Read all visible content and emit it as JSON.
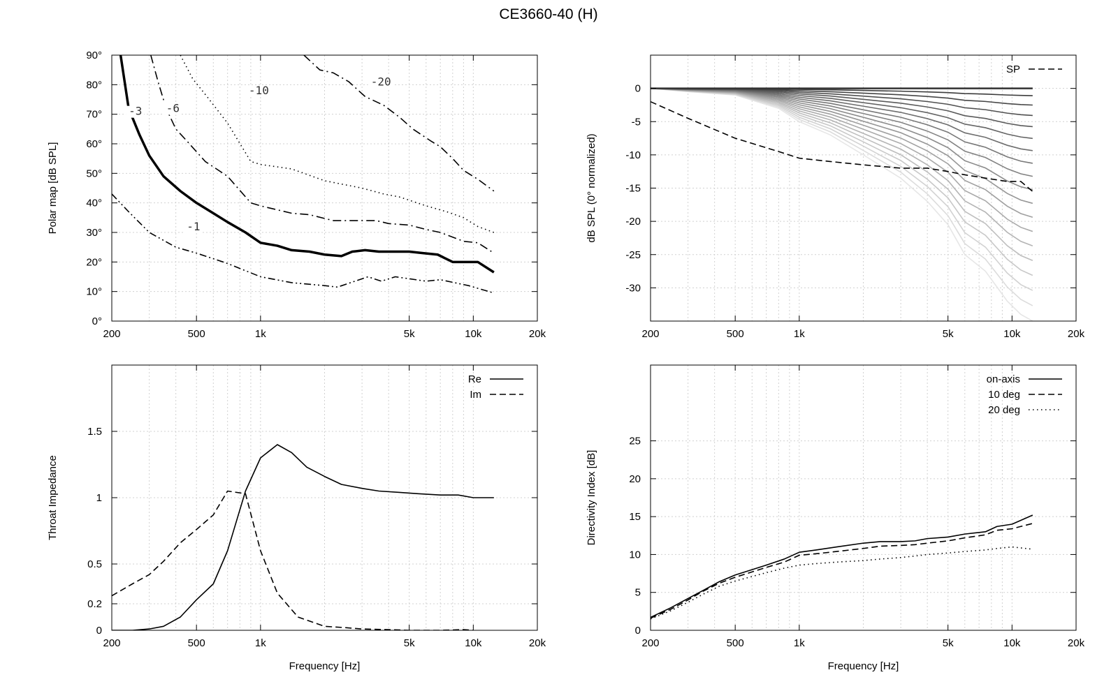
{
  "figure_title": "CE3660-40 (H)",
  "chart_data": [
    {
      "type": "line",
      "id": "polar_map",
      "title": "",
      "xlabel": "",
      "ylabel": "Polar map [dB SPL]",
      "xscale": "log",
      "xlim": [
        200,
        20000
      ],
      "ylim": [
        0,
        90
      ],
      "xticks": [
        200,
        500,
        1000,
        5000,
        10000,
        20000
      ],
      "xtick_labels": [
        "200",
        "500",
        "1k",
        "5k",
        "10k",
        "20k"
      ],
      "yticks": [
        0,
        10,
        20,
        30,
        40,
        50,
        60,
        70,
        80,
        90
      ],
      "ytick_labels": [
        "0°",
        "10°",
        "20°",
        "30°",
        "40°",
        "50°",
        "60°",
        "70°",
        "80°",
        "90°"
      ],
      "grid": true,
      "series": [
        {
          "name": "-1",
          "style": "dash-dot-dot",
          "x": [
            200,
            240,
            300,
            400,
            500,
            700,
            1000,
            1400,
            2000,
            2300,
            3200,
            3700,
            4300,
            6000,
            7000,
            9500,
            12500
          ],
          "y": [
            43,
            37,
            30,
            25,
            23,
            19.5,
            15,
            13,
            12,
            11.5,
            15,
            13.5,
            15,
            13.5,
            14,
            12,
            9.5
          ]
        },
        {
          "name": "-3",
          "style": "thick",
          "x": [
            220,
            240,
            270,
            300,
            350,
            420,
            500,
            600,
            700,
            850,
            1000,
            1200,
            1400,
            1700,
            2000,
            2400,
            2700,
            3100,
            3600,
            4200,
            5000,
            5800,
            6800,
            8000,
            9000,
            10500,
            12500
          ],
          "y": [
            90,
            72,
            63,
            56,
            49,
            44,
            40,
            36.5,
            33.5,
            30,
            26.5,
            25.5,
            24,
            23.5,
            22.5,
            22,
            23.5,
            24,
            23.5,
            23.5,
            23.5,
            23,
            22.5,
            20,
            20,
            20,
            16.5
          ]
        },
        {
          "name": "-6",
          "style": "dash-dot",
          "x": [
            305,
            330,
            360,
            400,
            450,
            550,
            700,
            900,
            1000,
            1400,
            1700,
            2200,
            3000,
            3500,
            4000,
            5000,
            6000,
            7000,
            9000,
            10500,
            12500
          ],
          "y": [
            90,
            81,
            72,
            65,
            61,
            54,
            49,
            40,
            39,
            36.5,
            36,
            34,
            34,
            34,
            33,
            32.5,
            31,
            30,
            27,
            26.5,
            23
          ]
        },
        {
          "name": "-10",
          "style": "dotted",
          "x": [
            420,
            480,
            560,
            700,
            900,
            1000,
            1400,
            2000,
            3000,
            3800,
            4500,
            6000,
            7500,
            9000,
            10500,
            12500
          ],
          "y": [
            90,
            82,
            76,
            67,
            54,
            53,
            51.5,
            47.5,
            45,
            43,
            42,
            39,
            37,
            35,
            32,
            30
          ]
        },
        {
          "name": "-20",
          "style": "dash-dot",
          "x": [
            1600,
            1900,
            2200,
            2600,
            3100,
            3800,
            4500,
            5200,
            6300,
            7000,
            8000,
            9000,
            10500,
            12500
          ],
          "y": [
            90,
            85,
            84,
            81,
            76,
            73,
            69,
            65,
            61,
            59,
            55,
            51,
            48,
            44
          ]
        }
      ],
      "annotations": [
        {
          "text": "-1",
          "x": 450,
          "y": 31
        },
        {
          "text": "-3",
          "x": 240,
          "y": 70
        },
        {
          "text": "-6",
          "x": 360,
          "y": 71
        },
        {
          "text": "-10",
          "x": 880,
          "y": 77
        },
        {
          "text": "-20",
          "x": 3300,
          "y": 80
        }
      ]
    },
    {
      "type": "line",
      "id": "normalized_spl",
      "title": "",
      "xlabel": "",
      "ylabel": "dB SPL (0° normalized)",
      "xscale": "log",
      "xlim": [
        200,
        20000
      ],
      "ylim": [
        -35,
        5
      ],
      "xticks": [
        200,
        500,
        1000,
        5000,
        10000,
        20000
      ],
      "xtick_labels": [
        "200",
        "500",
        "1k",
        "5k",
        "10k",
        "20k"
      ],
      "yticks": [
        0,
        -5,
        -10,
        -15,
        -20,
        -25,
        -30
      ],
      "ytick_labels": [
        "0",
        "-5",
        "-10",
        "-15",
        "-20",
        "-25",
        "-30"
      ],
      "grid": true,
      "legend": {
        "position": "top-right",
        "entries": [
          "SP"
        ]
      },
      "x": [
        200,
        300,
        500,
        800,
        1000,
        1400,
        2000,
        3000,
        4000,
        5000,
        6000,
        7500,
        9500,
        11000,
        12500
      ],
      "curve_depth_at_end_dB": [
        0,
        -0.5,
        -1,
        -3,
        -5,
        -7,
        -10,
        -13.5,
        -17,
        -20.5,
        -25,
        -27.5,
        -32,
        -34,
        -35
      ],
      "series": [
        {
          "name": "SP",
          "style": "dashed",
          "x": [
            200,
            300,
            500,
            800,
            1000,
            1400,
            2000,
            3000,
            4000,
            5000,
            6000,
            7500,
            9500,
            11000,
            12500
          ],
          "y": [
            -2,
            -4.5,
            -7.5,
            -9.5,
            -10.5,
            -11,
            -11.5,
            -12,
            -12,
            -12.5,
            -13,
            -13.5,
            -14,
            -14,
            -15.5
          ]
        }
      ]
    },
    {
      "type": "line",
      "id": "throat_impedance",
      "title": "",
      "xlabel": "Frequency [Hz]",
      "ylabel": "Throat Impedance",
      "xscale": "log",
      "xlim": [
        200,
        20000
      ],
      "ylim": [
        0,
        2
      ],
      "xticks": [
        200,
        500,
        1000,
        5000,
        10000,
        20000
      ],
      "xtick_labels": [
        "200",
        "500",
        "1k",
        "5k",
        "10k",
        "20k"
      ],
      "yticks": [
        0,
        0.2,
        0.5,
        1,
        1.5
      ],
      "ytick_labels": [
        "0",
        "0.2",
        "0.5",
        "1",
        "1.5"
      ],
      "grid": true,
      "legend": {
        "position": "top-right",
        "entries": [
          "Re",
          "Im"
        ]
      },
      "series": [
        {
          "name": "Re",
          "style": "solid",
          "x": [
            200,
            250,
            300,
            350,
            420,
            500,
            600,
            700,
            850,
            1000,
            1200,
            1400,
            1650,
            2000,
            2400,
            3000,
            3600,
            4500,
            5500,
            7000,
            8500,
            10000,
            12500
          ],
          "y": [
            0,
            0,
            0.01,
            0.03,
            0.1,
            0.23,
            0.35,
            0.6,
            1.05,
            1.3,
            1.4,
            1.34,
            1.23,
            1.16,
            1.1,
            1.07,
            1.05,
            1.04,
            1.03,
            1.02,
            1.02,
            1.0,
            1.0
          ]
        },
        {
          "name": "Im",
          "style": "dashed",
          "x": [
            200,
            250,
            300,
            350,
            420,
            500,
            600,
            700,
            850,
            1000,
            1200,
            1500,
            2000,
            2500,
            3000,
            4000,
            5000,
            7000,
            9000,
            10000
          ],
          "y": [
            0.26,
            0.35,
            0.42,
            0.52,
            0.66,
            0.76,
            0.87,
            1.05,
            1.03,
            0.6,
            0.28,
            0.1,
            0.03,
            0.02,
            0.01,
            0.005,
            0,
            0,
            0.005,
            0
          ]
        }
      ]
    },
    {
      "type": "line",
      "id": "directivity_index",
      "title": "",
      "xlabel": "Frequency [Hz]",
      "ylabel": "Directivity Index [dB]",
      "xscale": "log",
      "xlim": [
        200,
        20000
      ],
      "ylim": [
        0,
        35
      ],
      "xticks": [
        200,
        500,
        1000,
        5000,
        10000,
        20000
      ],
      "xtick_labels": [
        "200",
        "500",
        "1k",
        "5k",
        "10k",
        "20k"
      ],
      "yticks": [
        0,
        5,
        10,
        15,
        20,
        25
      ],
      "ytick_labels": [
        "0",
        "5",
        "10",
        "15",
        "20",
        "25"
      ],
      "grid": true,
      "legend": {
        "position": "top-right",
        "entries": [
          "on-axis",
          "10 deg",
          "20 deg"
        ]
      },
      "series": [
        {
          "name": "on-axis",
          "style": "solid",
          "x": [
            200,
            250,
            300,
            350,
            420,
            500,
            600,
            700,
            850,
            1000,
            1200,
            1500,
            2000,
            2400,
            3000,
            3500,
            4000,
            5000,
            6000,
            7500,
            8500,
            10000,
            12500
          ],
          "y": [
            1.7,
            3,
            4.2,
            5.2,
            6.4,
            7.3,
            8,
            8.6,
            9.4,
            10.3,
            10.6,
            11,
            11.5,
            11.7,
            11.7,
            11.8,
            12.1,
            12.3,
            12.7,
            13,
            13.7,
            14,
            15.2
          ]
        },
        {
          "name": "10 deg",
          "style": "dashed",
          "x": [
            200,
            250,
            300,
            350,
            420,
            500,
            600,
            700,
            850,
            1000,
            1200,
            1500,
            2000,
            2400,
            3000,
            3500,
            4000,
            5000,
            6000,
            7500,
            8500,
            10000,
            12500
          ],
          "y": [
            1.6,
            2.8,
            4,
            5.1,
            6.2,
            7,
            7.7,
            8.3,
            9,
            9.9,
            10.1,
            10.4,
            10.8,
            11.1,
            11.2,
            11.3,
            11.5,
            11.8,
            12.2,
            12.6,
            13.2,
            13.4,
            14.1
          ]
        },
        {
          "name": "20 deg",
          "style": "dotted",
          "x": [
            200,
            250,
            300,
            350,
            420,
            500,
            600,
            700,
            850,
            1000,
            1200,
            1500,
            2000,
            2400,
            3000,
            3500,
            4000,
            5000,
            6000,
            7500,
            8500,
            10000,
            12500
          ],
          "y": [
            1.5,
            2.6,
            3.7,
            4.7,
            5.8,
            6.5,
            7.1,
            7.6,
            8.2,
            8.6,
            8.8,
            9,
            9.2,
            9.4,
            9.6,
            9.8,
            10,
            10.2,
            10.4,
            10.6,
            10.8,
            11,
            10.7
          ]
        }
      ]
    }
  ]
}
